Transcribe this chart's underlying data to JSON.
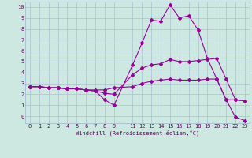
{
  "xlabel": "Windchill (Refroidissement éolien,°C)",
  "bg_color": "#cde8e0",
  "grid_color": "#9db8cc",
  "line_color": "#990099",
  "xlim": [
    -0.5,
    23.5
  ],
  "ylim": [
    -0.65,
    10.5
  ],
  "xtick_vals": [
    0,
    1,
    2,
    3,
    4,
    5,
    6,
    7,
    8,
    9,
    11,
    12,
    13,
    14,
    15,
    16,
    17,
    18,
    19,
    20,
    21,
    22,
    23
  ],
  "ytick_vals": [
    0,
    1,
    2,
    3,
    4,
    5,
    6,
    7,
    8,
    9,
    10
  ],
  "x_data": [
    0,
    1,
    2,
    3,
    4,
    5,
    6,
    7,
    8,
    9,
    11,
    12,
    13,
    14,
    15,
    16,
    17,
    18,
    19,
    20,
    21,
    22,
    23
  ],
  "series1": [
    2.7,
    2.7,
    2.6,
    2.6,
    2.5,
    2.5,
    2.4,
    2.3,
    1.5,
    1.0,
    4.7,
    6.7,
    8.8,
    8.7,
    10.2,
    9.0,
    9.2,
    7.9,
    5.3,
    3.4,
    1.5,
    -0.1,
    -0.4
  ],
  "series2": [
    2.7,
    2.7,
    2.6,
    2.6,
    2.5,
    2.5,
    2.4,
    2.3,
    2.1,
    2.0,
    3.8,
    4.4,
    4.7,
    4.8,
    5.2,
    5.0,
    5.0,
    5.1,
    5.2,
    5.3,
    3.4,
    1.5,
    1.4
  ],
  "series3": [
    2.7,
    2.7,
    2.6,
    2.6,
    2.5,
    2.5,
    2.4,
    2.4,
    2.4,
    2.6,
    2.7,
    3.0,
    3.2,
    3.3,
    3.4,
    3.3,
    3.3,
    3.3,
    3.4,
    3.4,
    1.5,
    1.5,
    1.4
  ],
  "figsize": [
    3.2,
    2.0
  ],
  "dpi": 100,
  "tick_fontsize": 5,
  "label_fontsize": 5,
  "marker_size": 2.0,
  "line_width": 0.8
}
